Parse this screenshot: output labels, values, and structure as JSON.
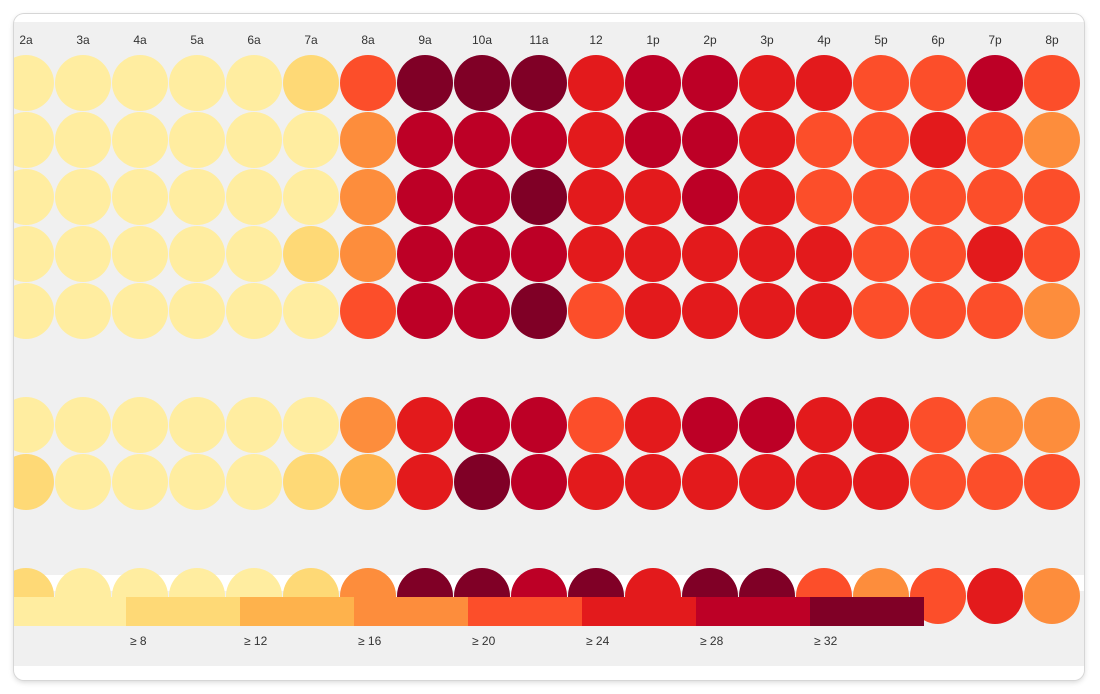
{
  "chart_data": {
    "type": "heatmap",
    "title": "",
    "xlabel": "",
    "ylabel": "",
    "marker": "circle",
    "legend_position": "bottom",
    "palette": [
      "#ffeda0",
      "#fed976",
      "#feb24c",
      "#fd8d3c",
      "#fc4e2a",
      "#e31a1c",
      "#bd0026",
      "#800026"
    ],
    "legend": {
      "labels": [
        "",
        "≥ 8",
        "≥ 12",
        "≥ 16",
        "≥ 20",
        "≥ 24",
        "≥ 28",
        "≥ 32"
      ]
    },
    "hours": [
      "2a",
      "3a",
      "4a",
      "5a",
      "6a",
      "7a",
      "8a",
      "9a",
      "10a",
      "11a",
      "12",
      "1p",
      "2p",
      "3p",
      "4p",
      "5p",
      "6p",
      "7p",
      "8p"
    ],
    "rows": [
      [
        6,
        6,
        2,
        2,
        6,
        10,
        22,
        34,
        34,
        34,
        26,
        30,
        30,
        26,
        26,
        22,
        22,
        30,
        22
      ],
      [
        6,
        6,
        6,
        6,
        6,
        6,
        18,
        30,
        30,
        30,
        26,
        30,
        30,
        26,
        22,
        22,
        26,
        22,
        18
      ],
      [
        6,
        6,
        6,
        6,
        6,
        6,
        18,
        30,
        30,
        34,
        26,
        26,
        30,
        26,
        22,
        22,
        22,
        22,
        22
      ],
      [
        6,
        6,
        6,
        6,
        6,
        10,
        18,
        30,
        30,
        30,
        26,
        26,
        26,
        26,
        26,
        22,
        22,
        26,
        22
      ],
      [
        6,
        6,
        6,
        6,
        6,
        6,
        22,
        30,
        30,
        34,
        22,
        26,
        26,
        26,
        26,
        22,
        22,
        22,
        18
      ],
      null,
      [
        6,
        6,
        6,
        6,
        6,
        6,
        18,
        26,
        30,
        30,
        22,
        26,
        30,
        30,
        26,
        26,
        22,
        18,
        18
      ],
      [
        10,
        6,
        6,
        6,
        6,
        10,
        14,
        26,
        34,
        30,
        26,
        26,
        26,
        26,
        26,
        26,
        22,
        22,
        22
      ],
      null,
      [
        10,
        6,
        6,
        6,
        6,
        10,
        18,
        34,
        34,
        30,
        34,
        26,
        34,
        34,
        22,
        18,
        22,
        26,
        18
      ]
    ]
  }
}
